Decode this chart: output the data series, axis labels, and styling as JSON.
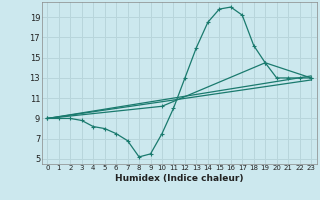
{
  "xlabel": "Humidex (Indice chaleur)",
  "bg_color": "#cce8ee",
  "grid_color": "#b8d5db",
  "line_color": "#1a7a6e",
  "xlim": [
    -0.5,
    23.5
  ],
  "ylim": [
    4.5,
    20.5
  ],
  "xticks": [
    0,
    1,
    2,
    3,
    4,
    5,
    6,
    7,
    8,
    9,
    10,
    11,
    12,
    13,
    14,
    15,
    16,
    17,
    18,
    19,
    20,
    21,
    22,
    23
  ],
  "yticks": [
    5,
    7,
    9,
    11,
    13,
    15,
    17,
    19
  ],
  "line1_x": [
    0,
    1,
    2,
    3,
    4,
    5,
    6,
    7,
    8,
    9,
    10,
    11,
    12,
    13,
    14,
    15,
    16,
    17,
    18,
    19,
    20,
    21,
    22,
    23
  ],
  "line1_y": [
    9,
    9,
    9,
    8.8,
    8.2,
    8.0,
    7.5,
    6.8,
    5.2,
    5.5,
    7.5,
    10.0,
    13.0,
    16.0,
    18.5,
    19.8,
    20.0,
    19.2,
    16.2,
    14.5,
    13.0,
    13.0,
    13.0,
    13.0
  ],
  "line2_x": [
    0,
    10,
    19,
    23
  ],
  "line2_y": [
    9,
    10.2,
    14.5,
    13.0
  ],
  "line3_x": [
    0,
    23
  ],
  "line3_y": [
    9,
    12.8
  ],
  "line4_x": [
    0,
    23
  ],
  "line4_y": [
    9,
    13.2
  ]
}
